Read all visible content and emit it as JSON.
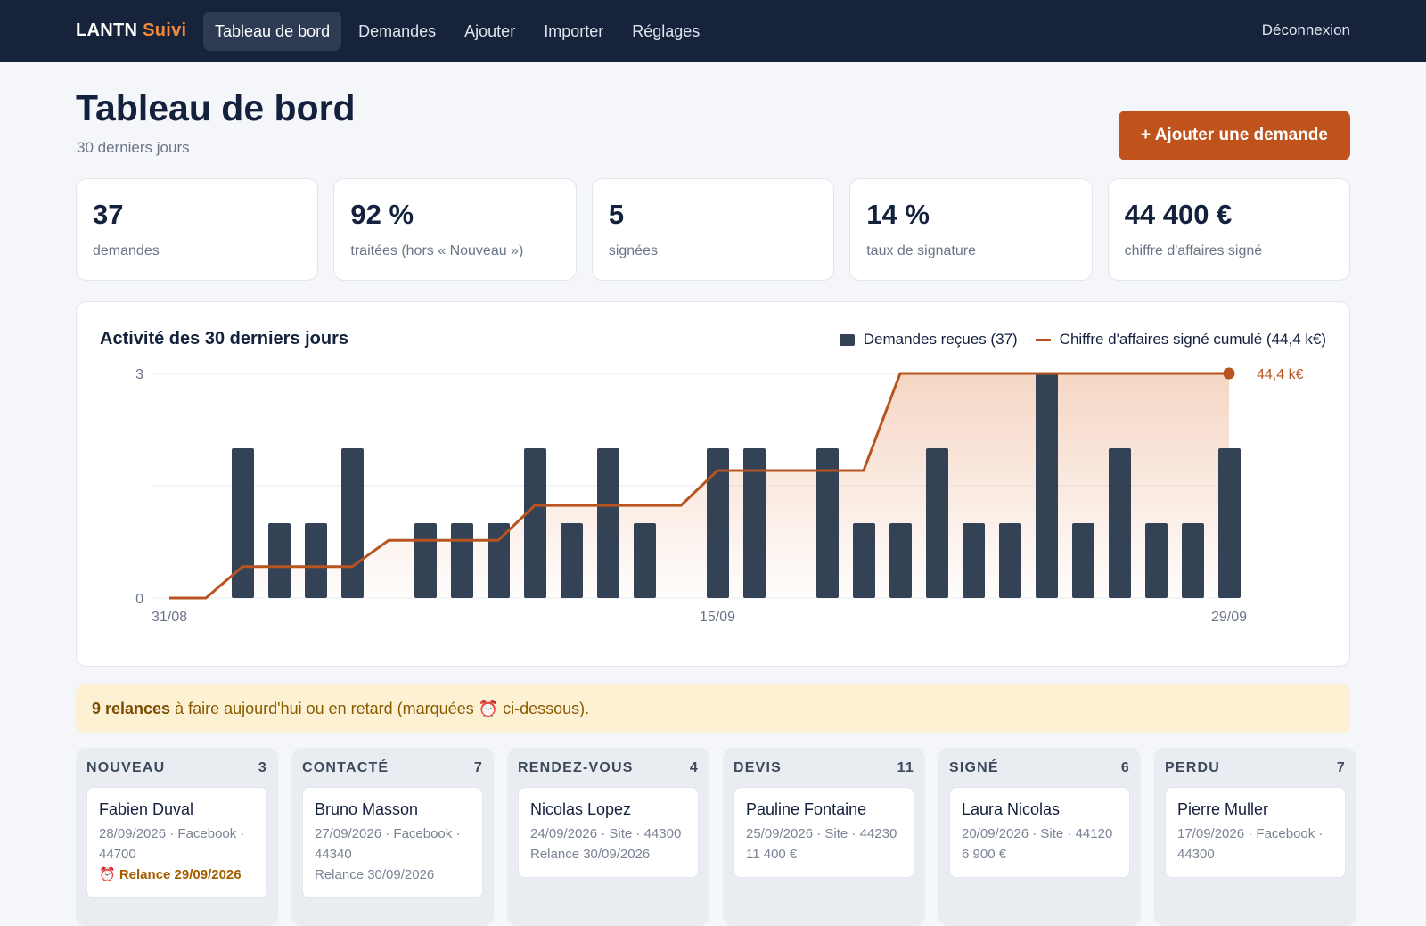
{
  "brand": {
    "name": "LANTN",
    "accent": "Suivi"
  },
  "nav": {
    "items": [
      {
        "label": "Tableau de bord",
        "active": true
      },
      {
        "label": "Demandes",
        "active": false
      },
      {
        "label": "Ajouter",
        "active": false
      },
      {
        "label": "Importer",
        "active": false
      },
      {
        "label": "Réglages",
        "active": false
      }
    ],
    "logout": "Déconnexion"
  },
  "header": {
    "title": "Tableau de bord",
    "subtitle": "30 derniers jours",
    "add_button": "+ Ajouter une demande"
  },
  "stats": [
    {
      "value": "37",
      "label": "demandes"
    },
    {
      "value": "92 %",
      "label": "traitées (hors « Nouveau »)"
    },
    {
      "value": "5",
      "label": "signées"
    },
    {
      "value": "14 %",
      "label": "taux de signature"
    },
    {
      "value": "44 400 €",
      "label": "chiffre d'affaires signé"
    }
  ],
  "chart": {
    "title": "Activité des 30 derniers jours",
    "legend_bars": "Demandes reçues (37)",
    "legend_line": "Chiffre d'affaires signé cumulé (44,4 k€)",
    "end_label": "44,4 k€"
  },
  "chart_data": {
    "type": "bar",
    "categories": [
      "31/08",
      "01/09",
      "02/09",
      "03/09",
      "04/09",
      "05/09",
      "06/09",
      "07/09",
      "08/09",
      "09/09",
      "10/09",
      "11/09",
      "12/09",
      "13/09",
      "14/09",
      "15/09",
      "16/09",
      "17/09",
      "18/09",
      "19/09",
      "20/09",
      "21/09",
      "22/09",
      "23/09",
      "24/09",
      "25/09",
      "26/09",
      "27/09",
      "28/09",
      "29/09"
    ],
    "x_tick_labels": [
      "31/08",
      "15/09",
      "29/09"
    ],
    "y_tick_labels": [
      "0",
      "3"
    ],
    "ylim": [
      0,
      3
    ],
    "series": [
      {
        "name": "Demandes reçues (37)",
        "type": "bar",
        "values": [
          0,
          2,
          1,
          1,
          2,
          0,
          1,
          1,
          1,
          2,
          1,
          2,
          1,
          0,
          2,
          2,
          0,
          2,
          1,
          1,
          2,
          1,
          1,
          3,
          1,
          2,
          1,
          1,
          2,
          0
        ]
      },
      {
        "name": "Chiffre d'affaires signé cumulé (44,4 k€)",
        "type": "step-line",
        "values": [
          0,
          0,
          6.2,
          6.2,
          6.2,
          6.2,
          11.4,
          11.4,
          11.4,
          11.4,
          18.3,
          18.3,
          18.3,
          18.3,
          18.3,
          25.2,
          25.2,
          25.2,
          25.2,
          25.2,
          44.4,
          44.4,
          44.4,
          44.4,
          44.4,
          44.4,
          44.4,
          44.4,
          44.4,
          44.4
        ],
        "unit": "k€",
        "ymax": 44.4
      }
    ],
    "colors": {
      "bars": "#344256",
      "line": "#b7541f"
    },
    "grid": true
  },
  "alert": {
    "count_text": "9 relances",
    "rest_text": " à faire aujourd'hui ou en retard (marquées ⏰ ci-dessous)."
  },
  "kanban": [
    {
      "title": "NOUVEAU",
      "count": "3",
      "card": {
        "name": "Fabien Duval",
        "meta": "28/09/2026 · Facebook · 44700",
        "extra": "⏰ Relance 29/09/2026",
        "due": true
      }
    },
    {
      "title": "CONTACTÉ",
      "count": "7",
      "card": {
        "name": "Bruno Masson",
        "meta": "27/09/2026 · Facebook · 44340",
        "extra": "Relance 30/09/2026",
        "due": false
      }
    },
    {
      "title": "RENDEZ-VOUS",
      "count": "4",
      "card": {
        "name": "Nicolas Lopez",
        "meta": "24/09/2026 · Site · 44300",
        "extra": "Relance 30/09/2026",
        "due": false
      }
    },
    {
      "title": "DEVIS",
      "count": "11",
      "card": {
        "name": "Pauline Fontaine",
        "meta": "25/09/2026 · Site · 44230",
        "extra": "11 400 €",
        "due": false
      }
    },
    {
      "title": "SIGNÉ",
      "count": "6",
      "card": {
        "name": "Laura Nicolas",
        "meta": "20/09/2026 · Site · 44120",
        "extra": "6 900 €",
        "due": false
      }
    },
    {
      "title": "PERDU",
      "count": "7",
      "card": {
        "name": "Pierre Muller",
        "meta": "17/09/2026 · Facebook · 44300",
        "extra": "",
        "due": false
      }
    }
  ]
}
